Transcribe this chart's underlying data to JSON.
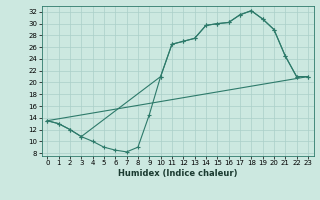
{
  "xlabel": "Humidex (Indice chaleur)",
  "bg_color": "#cce8e0",
  "line_color": "#2d7a6a",
  "grid_color": "#aacfc8",
  "xlim": [
    -0.5,
    23.5
  ],
  "ylim": [
    7.5,
    33
  ],
  "xticks": [
    0,
    1,
    2,
    3,
    4,
    5,
    6,
    7,
    8,
    9,
    10,
    11,
    12,
    13,
    14,
    15,
    16,
    17,
    18,
    19,
    20,
    21,
    22,
    23
  ],
  "yticks": [
    8,
    10,
    12,
    14,
    16,
    18,
    20,
    22,
    24,
    26,
    28,
    30,
    32
  ],
  "curve1_x": [
    0,
    1,
    2,
    3,
    4,
    5,
    6,
    7,
    8,
    9,
    10,
    11,
    12,
    13,
    14,
    15,
    16,
    17,
    18,
    19,
    20,
    21,
    22,
    23
  ],
  "curve1_y": [
    13.5,
    13.0,
    12.0,
    10.8,
    10.0,
    9.0,
    8.5,
    8.2,
    9.0,
    14.5,
    21.0,
    26.5,
    27.0,
    27.5,
    29.7,
    30.0,
    30.2,
    31.5,
    32.2,
    30.8,
    29.0,
    24.5,
    21.0,
    21.0
  ],
  "curve2_x": [
    0,
    1,
    2,
    3,
    10,
    11,
    12,
    13,
    14,
    15,
    16,
    17,
    18,
    19,
    20,
    21,
    22,
    23
  ],
  "curve2_y": [
    13.5,
    13.0,
    12.0,
    10.8,
    21.0,
    26.5,
    27.0,
    27.5,
    29.7,
    30.0,
    30.2,
    31.5,
    32.2,
    30.8,
    29.0,
    24.5,
    21.0,
    21.0
  ],
  "curve3_x": [
    0,
    23
  ],
  "curve3_y": [
    13.5,
    21.0
  ]
}
